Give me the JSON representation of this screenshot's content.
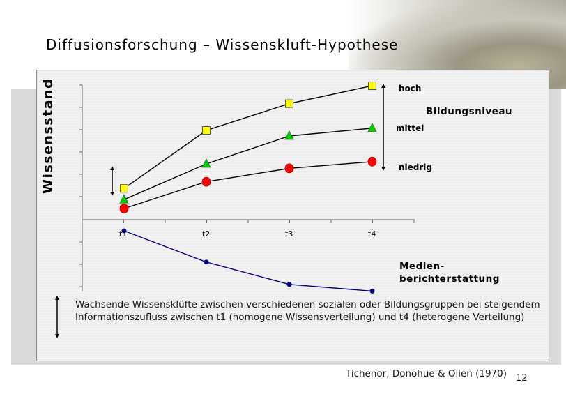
{
  "title": "Diffusionsforschung – Wissenskluft-Hypothese",
  "description": "Wachsende Wissensklüfte zwischen verschiedenen sozialen oder Bildungsgruppen bei steigendem Informationszufluss zwischen t1 (homogene Wissensverteilung) und t4 (heterogene Verteilung)",
  "citation": "Tichenor, Donohue & Olien (1970)",
  "page_number": "12",
  "chart_data": {
    "type": "line",
    "ylabel": "Wissensstand",
    "categories": [
      "t1",
      "t2",
      "t3",
      "t4"
    ],
    "grid": false,
    "legend_title": "Bildungsniveau",
    "series": [
      {
        "name": "hoch",
        "marker": "square",
        "color": "#ffff00",
        "values": [
          1.4,
          4.0,
          5.2,
          6.0
        ]
      },
      {
        "name": "mittel",
        "marker": "triangle",
        "color": "#00cc00",
        "values": [
          0.9,
          2.5,
          3.75,
          4.1
        ]
      },
      {
        "name": "niedrig",
        "marker": "circle",
        "color": "#ff0000",
        "values": [
          0.5,
          1.7,
          2.3,
          2.6
        ]
      },
      {
        "name": "Medien- berichterstattung",
        "name_lines": [
          "Medien-",
          "berichterstattung"
        ],
        "marker": "dot",
        "color": "#000080",
        "values": [
          -0.5,
          -1.9,
          -2.9,
          -3.2
        ]
      }
    ],
    "ylim": [
      -3.2,
      6.0
    ]
  }
}
